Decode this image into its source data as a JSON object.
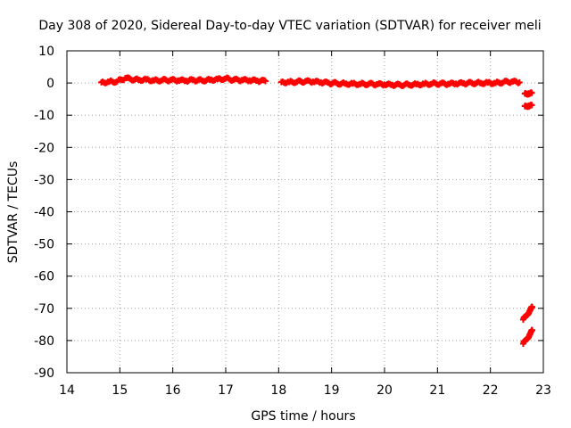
{
  "chart_data": {
    "type": "scatter",
    "title": "Day 308 of 2020, Sidereal Day-to-day VTEC variation (SDTVAR) for receiver meli",
    "xlabel": "GPS time / hours",
    "ylabel": "SDTVAR / TECUs",
    "xlim": [
      14,
      23
    ],
    "ylim": [
      -90,
      10
    ],
    "xticks": [
      14,
      15,
      16,
      17,
      18,
      19,
      20,
      21,
      22,
      23
    ],
    "yticks": [
      10,
      0,
      -10,
      -20,
      -30,
      -40,
      -50,
      -60,
      -70,
      -80,
      -90
    ],
    "grid": true,
    "legend": "none",
    "marker": "plus",
    "color": "#ff0000",
    "series": [
      {
        "points": [
          [
            14.65,
            0.2
          ],
          [
            14.8,
            0.4
          ],
          [
            14.95,
            0.5
          ],
          [
            15.1,
            1.5
          ],
          [
            15.2,
            1.2
          ],
          [
            15.35,
            1.0
          ],
          [
            15.5,
            1.1
          ],
          [
            15.65,
            0.8
          ],
          [
            15.8,
            0.9
          ],
          [
            15.95,
            0.9
          ],
          [
            16.1,
            0.8
          ],
          [
            16.25,
            0.7
          ],
          [
            16.4,
            0.9
          ],
          [
            16.55,
            0.8
          ],
          [
            16.7,
            1.0
          ],
          [
            16.85,
            1.2
          ],
          [
            17.0,
            1.4
          ],
          [
            17.15,
            1.0
          ],
          [
            17.3,
            0.9
          ],
          [
            17.45,
            0.8
          ],
          [
            17.6,
            0.7
          ],
          [
            17.75,
            0.6
          ],
          [
            18.05,
            0.3
          ],
          [
            18.2,
            0.3
          ],
          [
            18.35,
            0.4
          ],
          [
            18.5,
            0.5
          ],
          [
            18.65,
            0.4
          ],
          [
            18.8,
            0.2
          ],
          [
            18.95,
            0.0
          ],
          [
            19.1,
            -0.1
          ],
          [
            19.25,
            -0.2
          ],
          [
            19.4,
            -0.2
          ],
          [
            19.55,
            -0.3
          ],
          [
            19.7,
            -0.3
          ],
          [
            19.85,
            -0.4
          ],
          [
            20.0,
            -0.5
          ],
          [
            20.15,
            -0.6
          ],
          [
            20.3,
            -0.6
          ],
          [
            20.45,
            -0.5
          ],
          [
            20.6,
            -0.4
          ],
          [
            20.75,
            -0.3
          ],
          [
            20.9,
            -0.2
          ],
          [
            21.05,
            -0.2
          ],
          [
            21.2,
            -0.3
          ],
          [
            21.35,
            -0.2
          ],
          [
            21.5,
            -0.1
          ],
          [
            21.65,
            0.0
          ],
          [
            21.8,
            0.0
          ],
          [
            21.95,
            0.1
          ],
          [
            22.1,
            0.0
          ],
          [
            22.25,
            0.3
          ],
          [
            22.4,
            0.4
          ],
          [
            22.55,
            0.2
          ],
          [
            22.65,
            -3.3
          ],
          [
            22.72,
            -3.2
          ],
          [
            22.78,
            -3.1
          ],
          [
            22.65,
            -7.2
          ],
          [
            22.72,
            -7.0
          ],
          [
            22.78,
            -6.9
          ],
          [
            22.62,
            -73.5
          ],
          [
            22.68,
            -72.2
          ],
          [
            22.74,
            -70.8
          ],
          [
            22.79,
            -69.6
          ],
          [
            22.62,
            -81.0
          ],
          [
            22.68,
            -79.6
          ],
          [
            22.74,
            -78.2
          ],
          [
            22.79,
            -76.8
          ]
        ]
      }
    ]
  }
}
